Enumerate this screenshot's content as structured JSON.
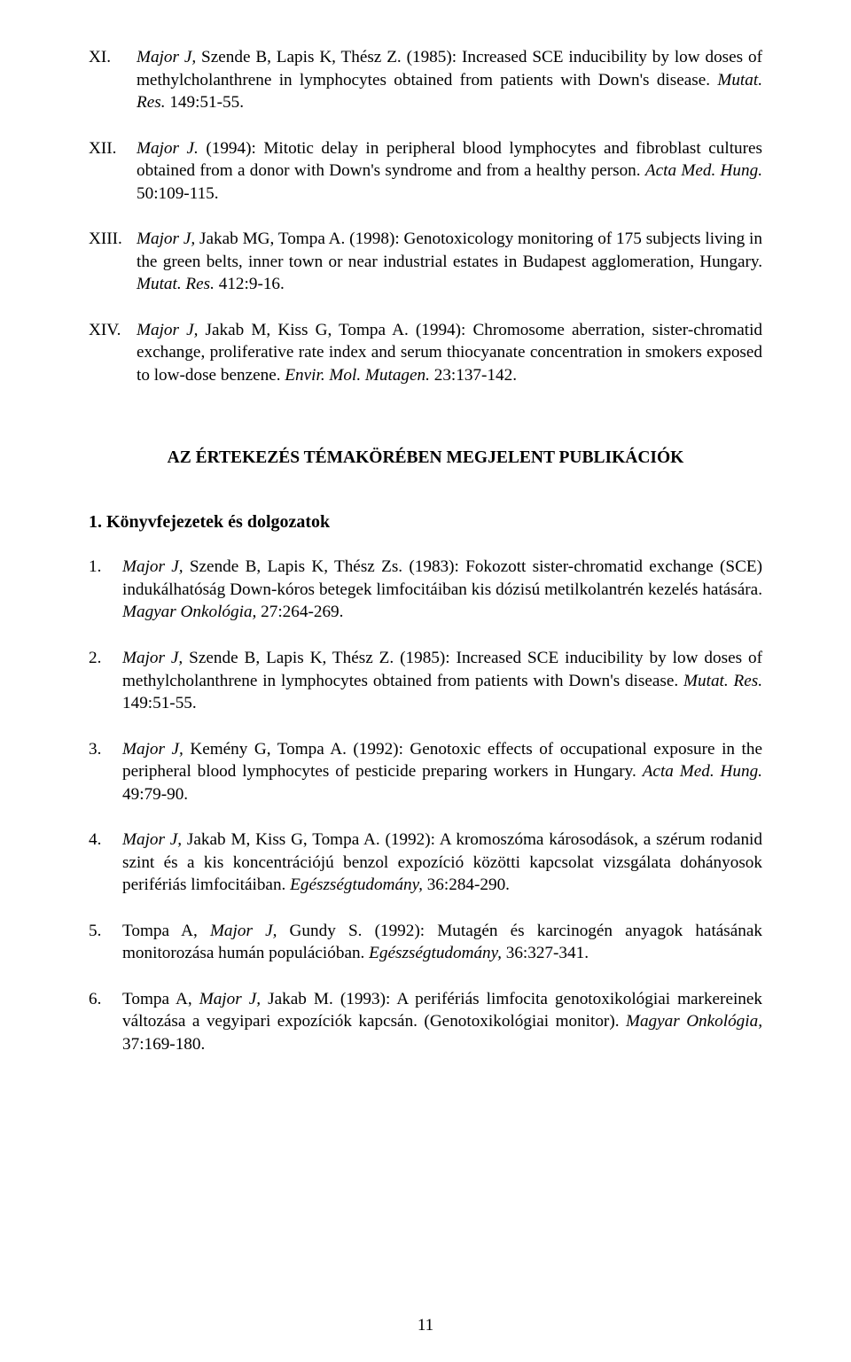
{
  "roman_refs": [
    {
      "label": "XI.",
      "authors_it": "Major J,",
      "rest1": " Szende B, Lapis K, Thész Z. (1985): Increased SCE inducibility by low doses of methylcholanthrene in lymphocytes obtained from patients with Down's disease. ",
      "journal_it": "Mutat. Res.",
      "rest2": " 149:51-55."
    },
    {
      "label": "XII.",
      "authors_it": "Major J.",
      "rest1": " (1994): Mitotic delay in peripheral blood lymphocytes and fibroblast cultures obtained from a donor with Down's syndrome and from a healthy person. ",
      "journal_it": "Acta Med. Hung.",
      "rest2": " 50:109-115."
    },
    {
      "label": "XIII.",
      "authors_it": "Major J,",
      "rest1": " Jakab MG, Tompa A. (1998): Genotoxicology monitoring of 175 subjects living in the green belts, inner town or near industrial estates in Budapest agglomeration, Hungary. ",
      "journal_it": "Mutat. Res.",
      "rest2": " 412:9-16."
    },
    {
      "label": "XIV.",
      "authors_it": "Major J,",
      "rest1": " Jakab M, Kiss G, Tompa A. (1994): Chromosome aberration, sister-chromatid exchange, proliferative rate index and serum thiocyanate concentration in smokers exposed to low-dose benzene. ",
      "journal_it": "Envir. Mol. Mutagen.",
      "rest2": " 23:137-142."
    }
  ],
  "section_title_leading": "A",
  "section_title_rest": "Z ÉRTEKEZÉS TÉMAKÖRÉBEN MEGJELENT PUBLIKÁCIÓK",
  "subheading": "1. Könyvfejezetek és dolgozatok",
  "num_refs": [
    {
      "label": "1.",
      "authors_it": "Major J,",
      "rest1": " Szende B, Lapis K, Thész Zs. (1983): Fokozott sister-chromatid exchange (SCE) indukálhatóság Down-kóros betegek limfocitáiban kis dózisú metilkolantrén kezelés hatására. ",
      "journal_it": "Magyar Onkológia,",
      "rest2": " 27:264-269."
    },
    {
      "label": "2.",
      "authors_it": "Major J,",
      "rest1": " Szende B, Lapis K, Thész Z. (1985): Increased SCE inducibility by low doses of methylcholanthrene in lymphocytes obtained from patients with Down's disease. ",
      "journal_it": "Mutat. Res.",
      "rest2": " 149:51-55."
    },
    {
      "label": "3.",
      "authors_it": "Major J,",
      "rest1": " Kemény G, Tompa A. (1992): Genotoxic effects of occupational exposure in the peripheral blood lymphocytes of pesticide preparing workers in Hungary. ",
      "journal_it": "Acta Med. Hung.",
      "rest2": " 49:79-90."
    },
    {
      "label": "4.",
      "authors_it": "Major J,",
      "rest1": " Jakab M, Kiss G, Tompa A. (1992): A kromoszóma károsodások, a szérum rodanid szint és a kis koncentrációjú benzol expozíció közötti kapcsolat vizsgálata dohányosok perifériás limfocitáiban. ",
      "journal_it": "Egészségtudomány,",
      "rest2": " 36:284-290."
    },
    {
      "label": "5.",
      "authors_pre": "Tompa A, ",
      "authors_it": "Major J,",
      "rest1": " Gundy S. (1992): Mutagén és karcinogén anyagok hatásának monitorozása humán populációban. ",
      "journal_it": "Egészségtudomány,",
      "rest2": " 36:327-341."
    },
    {
      "label": "6.",
      "authors_pre": "Tompa A, ",
      "authors_it": "Major J,",
      "rest1": " Jakab M. (1993): A perifériás limfocita genotoxikológiai markereinek változása a vegyipari expozíciók kapcsán. (Genotoxikológiai monitor). ",
      "journal_it": "Magyar Onkológia,",
      "rest2": " 37:169-180."
    }
  ],
  "page_number": "11"
}
